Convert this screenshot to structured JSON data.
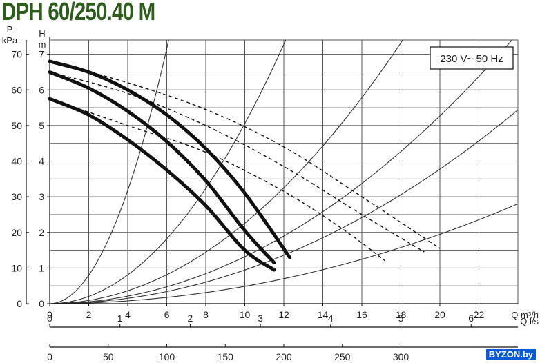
{
  "title": "DPH 60/250.40 M",
  "watermark": "BYZON.by",
  "chart_data": {
    "type": "line",
    "title": "DPH 60/250.40 M",
    "voltage_label": "230 V~ 50 Hz",
    "axes": {
      "x_main": {
        "label": "Q m³/h",
        "range": [
          0,
          24
        ],
        "ticks": [
          0,
          2,
          4,
          6,
          8,
          10,
          12,
          14,
          16,
          18,
          20,
          22
        ]
      },
      "x_ls": {
        "label": "Q l/s",
        "ticks": [
          0,
          1,
          2,
          3,
          4,
          5,
          6
        ]
      },
      "x_lmin": {
        "label": "Q l/min",
        "ticks": [
          0,
          50,
          100,
          150,
          200,
          250,
          300
        ]
      },
      "y_main": {
        "label": "H",
        "unit": "m",
        "range": [
          0,
          7
        ],
        "ticks": [
          0,
          1,
          2,
          3,
          4,
          5,
          6,
          7
        ]
      },
      "y_kpa": {
        "label": "P",
        "unit": "kPa",
        "ticks": [
          0,
          10,
          20,
          30,
          40,
          50,
          60,
          70
        ]
      }
    },
    "grid": true,
    "series": [
      {
        "style": "solid-thick",
        "x": [
          0,
          2,
          4,
          6,
          8,
          10,
          11.5
        ],
        "y": [
          5.75,
          5.3,
          4.6,
          3.75,
          2.75,
          1.5,
          0.95
        ]
      },
      {
        "style": "solid-thick",
        "x": [
          0,
          2,
          4,
          6,
          8,
          10,
          11.5
        ],
        "y": [
          6.5,
          6.05,
          5.4,
          4.55,
          3.45,
          2.05,
          1.15
        ]
      },
      {
        "style": "solid-thick",
        "x": [
          0,
          2,
          4,
          6,
          8,
          10,
          12.3
        ],
        "y": [
          6.8,
          6.5,
          6.0,
          5.3,
          4.35,
          3.1,
          1.3
        ]
      },
      {
        "style": "dashed",
        "x": [
          0,
          4,
          8,
          12,
          15,
          17.2
        ],
        "y": [
          5.75,
          5.0,
          4.25,
          3.15,
          2.1,
          1.2
        ]
      },
      {
        "style": "dashed",
        "x": [
          0,
          4,
          8,
          12,
          16,
          19.2
        ],
        "y": [
          6.5,
          5.9,
          5.0,
          3.85,
          2.5,
          1.45
        ]
      },
      {
        "style": "dashed",
        "x": [
          0,
          4,
          8,
          12,
          16,
          20
        ],
        "y": [
          6.8,
          6.2,
          5.45,
          4.4,
          3.0,
          1.55
        ]
      }
    ],
    "system_curves": [
      {
        "style": "thin",
        "x_at_top": 6.1
      },
      {
        "style": "thin",
        "x_at_top": 12.1
      },
      {
        "style": "thin",
        "x_at_top": 18.1
      },
      {
        "style": "thin",
        "x_at_top": 23.7
      },
      {
        "style": "thin",
        "x_at_top": 28.0
      },
      {
        "style": "thin",
        "x_at_top": 39.0
      }
    ]
  }
}
